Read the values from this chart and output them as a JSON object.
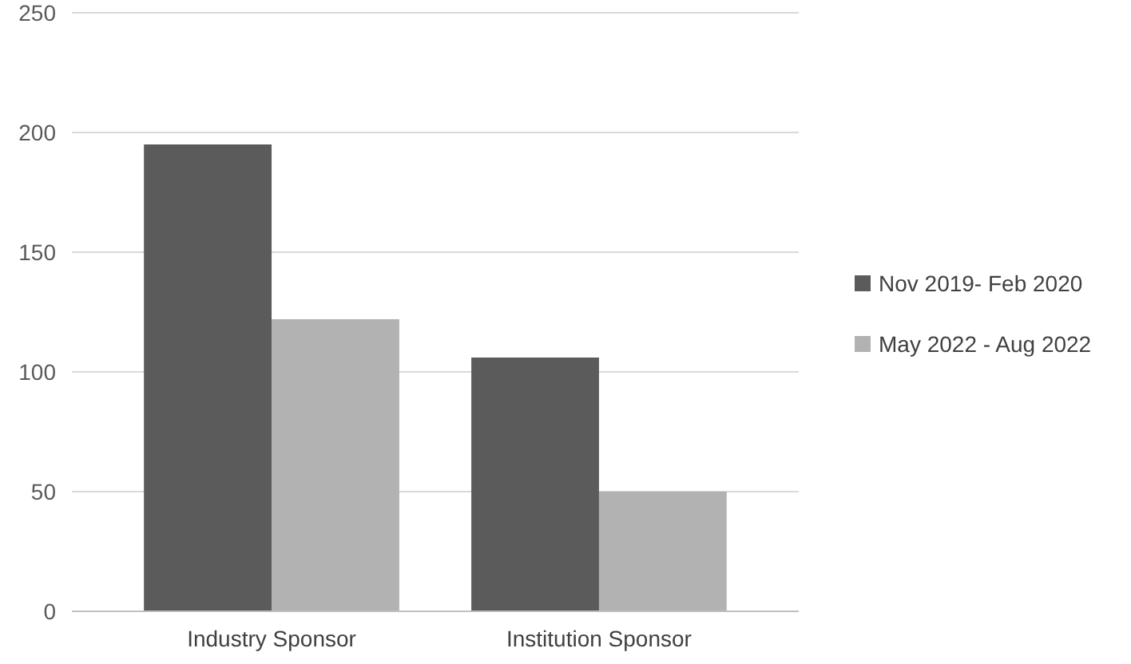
{
  "chart_data": {
    "type": "bar",
    "categories": [
      "Industry Sponsor",
      "Institution Sponsor"
    ],
    "series": [
      {
        "name": "Nov 2019- Feb 2020",
        "color": "#5b5b5b",
        "values": [
          195,
          106
        ]
      },
      {
        "name": "May 2022 - Aug 2022",
        "color": "#b2b2b2",
        "values": [
          122,
          50
        ]
      }
    ],
    "ylim": [
      0,
      250
    ],
    "yticks": [
      0,
      50,
      100,
      150,
      200,
      250
    ],
    "grid": "y",
    "legend": "right"
  }
}
